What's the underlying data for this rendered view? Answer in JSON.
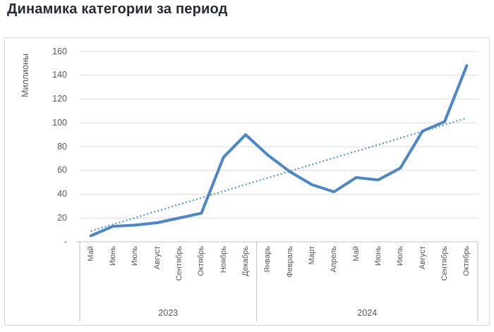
{
  "title": "Динамика категории за период",
  "y_axis": {
    "unit_label": "Миллионы",
    "tick_labels": [
      "160",
      "140",
      "120",
      "100",
      "80",
      "60",
      "40",
      "20",
      "-"
    ],
    "tick_values": [
      160,
      140,
      120,
      100,
      80,
      60,
      40,
      20,
      0
    ]
  },
  "x_axis": {
    "year_groups": [
      {
        "label": "2023",
        "month_count": 8
      },
      {
        "label": "2024",
        "month_count": 10
      }
    ]
  },
  "chart_data": {
    "type": "line",
    "title": "Динамика категории за период",
    "ylabel": "Миллионы",
    "ylim": [
      0,
      160
    ],
    "grid": true,
    "legend": "none",
    "categories": [
      "Май",
      "Июнь",
      "Июль",
      "Август",
      "Сентябрь",
      "Октябрь",
      "Ноябрь",
      "Декабрь",
      "Январь",
      "Февраль",
      "Март",
      "Апрель",
      "Май",
      "Июнь",
      "Июль",
      "Август",
      "Сентябрь",
      "Октябрь"
    ],
    "category_years": [
      "2023",
      "2023",
      "2023",
      "2023",
      "2023",
      "2023",
      "2023",
      "2023",
      "2024",
      "2024",
      "2024",
      "2024",
      "2024",
      "2024",
      "2024",
      "2024",
      "2024",
      "2024"
    ],
    "series": [
      {
        "id": "main",
        "style": "solid",
        "values": [
          5,
          13,
          14,
          16,
          20,
          24,
          71,
          90,
          73,
          59,
          48,
          42,
          54,
          52,
          62,
          93,
          101,
          148
        ]
      },
      {
        "id": "trend",
        "style": "dotted",
        "values": [
          9,
          14.6,
          20.2,
          25.8,
          31.4,
          36.9,
          42.5,
          48.1,
          53.7,
          59.3,
          64.9,
          70.5,
          76.1,
          81.6,
          87.2,
          92.8,
          98.4,
          104
        ]
      }
    ],
    "colors": {
      "main_line": "#4a86c8",
      "trend_line": "#5b9bd5",
      "axis_text": "#595959",
      "gridline": "#d9d9d9",
      "axis_line": "#bfbfbf",
      "title_text": "#272b33",
      "frame_border": "#d9d9d9"
    }
  }
}
